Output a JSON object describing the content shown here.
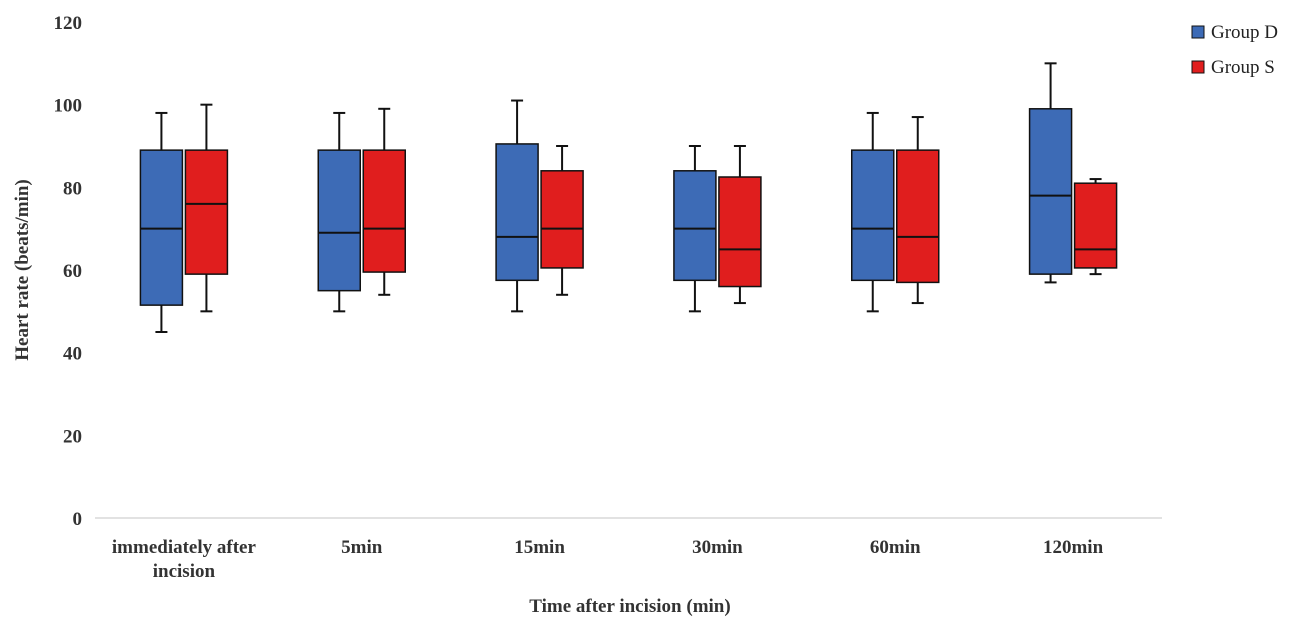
{
  "chart_data": {
    "type": "box",
    "xlabel": "Time after incision (min)",
    "ylabel": "Heart rate (beats/min)",
    "ylim": [
      0,
      120
    ],
    "yticks": [
      0,
      20,
      40,
      60,
      80,
      100,
      120
    ],
    "grid": false,
    "legend_position": "top-right",
    "categories": [
      [
        "immediately after",
        "incision"
      ],
      [
        "5min"
      ],
      [
        "15min"
      ],
      [
        "30min"
      ],
      [
        "60min"
      ],
      [
        "120min"
      ]
    ],
    "series": [
      {
        "name": "Group D",
        "color": "#3d6bb6",
        "boxes": [
          {
            "min": 45,
            "q1": 51.5,
            "median": 70,
            "q3": 89,
            "max": 98
          },
          {
            "min": 50,
            "q1": 55,
            "median": 69,
            "q3": 89,
            "max": 98
          },
          {
            "min": 50,
            "q1": 57.5,
            "median": 68,
            "q3": 90.5,
            "max": 101
          },
          {
            "min": 50,
            "q1": 57.5,
            "median": 70,
            "q3": 84,
            "max": 90
          },
          {
            "min": 50,
            "q1": 57.5,
            "median": 70,
            "q3": 89,
            "max": 98
          },
          {
            "min": 57,
            "q1": 59,
            "median": 78,
            "q3": 99,
            "max": 110
          }
        ]
      },
      {
        "name": "Group S",
        "color": "#e01e1e",
        "boxes": [
          {
            "min": 50,
            "q1": 59,
            "median": 76,
            "q3": 89,
            "max": 100
          },
          {
            "min": 54,
            "q1": 59.5,
            "median": 70,
            "q3": 89,
            "max": 99
          },
          {
            "min": 54,
            "q1": 60.5,
            "median": 70,
            "q3": 84,
            "max": 90
          },
          {
            "min": 52,
            "q1": 56,
            "median": 65,
            "q3": 82.5,
            "max": 90
          },
          {
            "min": 52,
            "q1": 57,
            "median": 68,
            "q3": 89,
            "max": 97
          },
          {
            "min": 59,
            "q1": 60.5,
            "median": 65,
            "q3": 81,
            "max": 82
          }
        ]
      }
    ]
  }
}
